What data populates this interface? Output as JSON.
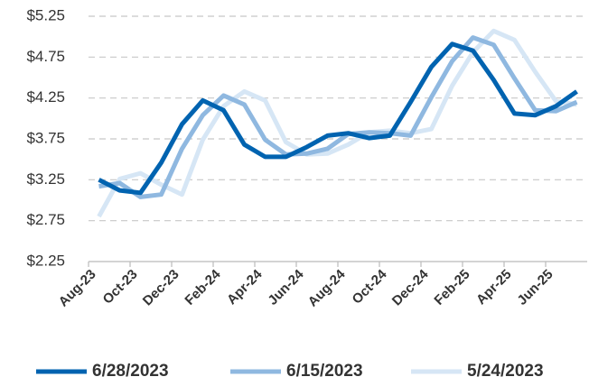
{
  "chart_data": {
    "type": "line",
    "categories": [
      "Aug-23",
      null,
      "Oct-23",
      null,
      "Dec-23",
      null,
      "Feb-24",
      null,
      "Apr-24",
      null,
      "Jun-24",
      null,
      "Aug-24",
      null,
      "Oct-24",
      null,
      "Dec-24",
      null,
      "Feb-25",
      null,
      "Apr-25",
      null,
      "Jun-25",
      null
    ],
    "series": [
      {
        "name": "6/28/2023",
        "color": "#0063b0",
        "values": [
          3.25,
          3.12,
          3.09,
          3.46,
          3.93,
          4.22,
          4.1,
          3.68,
          3.53,
          3.53,
          3.65,
          3.79,
          3.82,
          3.76,
          3.79,
          4.2,
          4.63,
          4.91,
          4.83,
          4.47,
          4.06,
          4.04,
          4.15,
          4.33
        ]
      },
      {
        "name": "6/15/2023",
        "color": "#8fb8e0",
        "values": [
          3.17,
          3.21,
          3.04,
          3.07,
          3.63,
          4.04,
          4.28,
          4.17,
          3.74,
          3.56,
          3.57,
          3.63,
          3.81,
          3.83,
          3.82,
          3.79,
          4.26,
          4.7,
          4.99,
          4.9,
          4.49,
          4.1,
          4.09,
          4.2
        ]
      },
      {
        "name": "5/24/2023",
        "color": "#d6e6f5",
        "values": [
          2.8,
          3.26,
          3.33,
          3.19,
          3.07,
          3.74,
          4.15,
          4.33,
          4.22,
          3.71,
          3.56,
          3.57,
          3.68,
          3.83,
          3.85,
          3.82,
          3.87,
          4.4,
          4.81,
          5.07,
          4.96,
          4.57,
          4.21,
          4.17
        ]
      }
    ],
    "ylim": [
      2.25,
      5.25
    ],
    "yticks": [
      {
        "value": 2.25,
        "label": "$2.25"
      },
      {
        "value": 2.75,
        "label": "$2.75"
      },
      {
        "value": 3.25,
        "label": "$3.25"
      },
      {
        "value": 3.75,
        "label": "$3.75"
      },
      {
        "value": 4.25,
        "label": "$4.25"
      },
      {
        "value": 4.75,
        "label": "$4.75"
      },
      {
        "value": 5.25,
        "label": "$5.25"
      }
    ],
    "grid": true,
    "legend": "bottom"
  }
}
